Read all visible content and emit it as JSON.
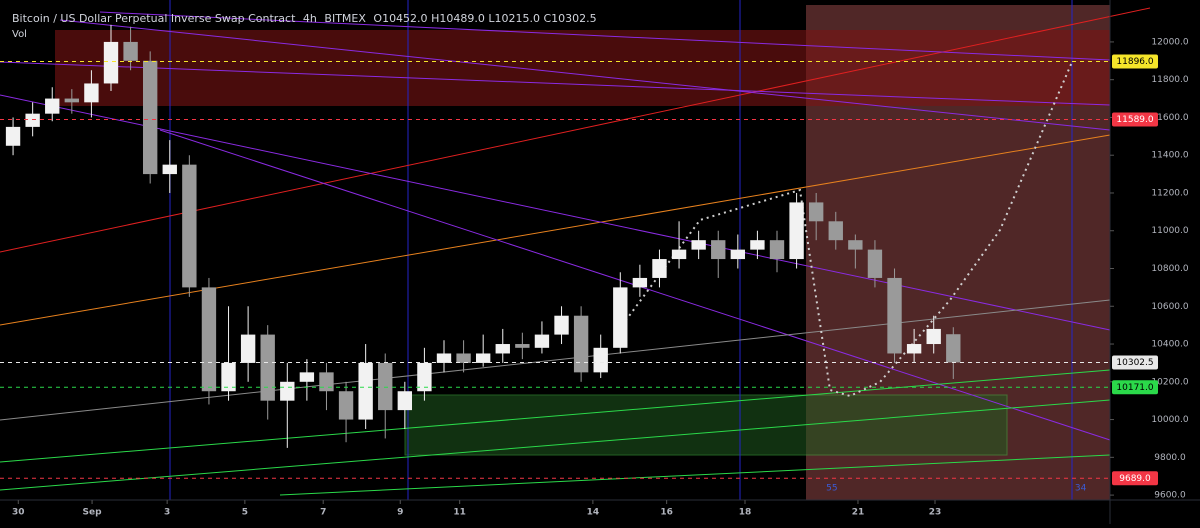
{
  "chart_data": {
    "type": "candlestick",
    "header": [
      "Bitcoin / US Dollar Perpetual Inverse Swap Contract",
      "4h",
      "BITMEX",
      "O10452.0",
      "H10489.0",
      "L10215.0",
      "C10302.5"
    ],
    "volume_label": "Vol",
    "x": [
      2,
      5,
      8,
      11,
      14,
      17,
      20,
      23,
      26,
      29,
      32,
      35,
      38,
      41,
      44,
      47,
      50,
      53,
      56,
      59,
      62,
      65,
      68,
      71,
      74,
      77,
      80,
      83,
      86,
      89,
      92,
      95,
      98,
      101,
      104,
      107,
      110,
      113,
      116,
      119,
      122,
      125,
      128,
      131,
      134,
      137,
      140,
      143,
      146
    ],
    "open": [
      11450,
      11550,
      11620,
      11700,
      11680,
      11780,
      12000,
      11900,
      11300,
      11350,
      10700,
      10150,
      10300,
      10450,
      10100,
      10200,
      10250,
      10150,
      10000,
      10300,
      10050,
      10150,
      10300,
      10350,
      10300,
      10350,
      10400,
      10380,
      10450,
      10550,
      10250,
      10380,
      10700,
      10750,
      10850,
      10900,
      10950,
      10850,
      10900,
      10950,
      10850,
      11150,
      11050,
      10950,
      10900,
      10750,
      10350,
      10400,
      10452
    ],
    "high": [
      11600,
      11680,
      11760,
      11750,
      11850,
      12090,
      12080,
      11950,
      11480,
      11400,
      10750,
      10600,
      10600,
      10500,
      10300,
      10320,
      10300,
      10200,
      10400,
      10350,
      10200,
      10380,
      10420,
      10420,
      10450,
      10480,
      10460,
      10520,
      10600,
      10600,
      10450,
      10780,
      10820,
      10900,
      11050,
      11000,
      11000,
      10980,
      11000,
      11000,
      11200,
      11200,
      11100,
      10980,
      10950,
      10800,
      10480,
      10550,
      10489
    ],
    "low": [
      11400,
      11500,
      11580,
      11620,
      11600,
      11740,
      11850,
      11250,
      11200,
      10650,
      10080,
      10100,
      10200,
      10000,
      9850,
      10100,
      10050,
      9880,
      9950,
      9900,
      9950,
      10100,
      10250,
      10250,
      10280,
      10300,
      10320,
      10350,
      10400,
      10200,
      10220,
      10350,
      10650,
      10700,
      10800,
      10850,
      10750,
      10800,
      10850,
      10780,
      10800,
      10950,
      10900,
      10800,
      10700,
      10300,
      10300,
      10350,
      10215
    ],
    "close": [
      11550,
      11620,
      11700,
      11680,
      11780,
      12000,
      11900,
      11300,
      11350,
      10700,
      10150,
      10300,
      10450,
      10100,
      10200,
      10250,
      10150,
      10000,
      10300,
      10050,
      10150,
      10300,
      10350,
      10300,
      10350,
      10400,
      10380,
      10450,
      10550,
      10250,
      10380,
      10700,
      10750,
      10850,
      10900,
      10950,
      10850,
      10900,
      10950,
      10850,
      11150,
      11050,
      10950,
      10900,
      10750,
      10350,
      10400,
      10480,
      10302.5
    ],
    "up_color": "#f2f2f2",
    "down_color": "#9a9a9a",
    "xlim": [
      0,
      170
    ],
    "xticks": [
      {
        "value": 2.8,
        "label": "30"
      },
      {
        "value": 14.1,
        "label": "Sep"
      },
      {
        "value": 25.6,
        "label": "3"
      },
      {
        "value": 37.5,
        "label": "5"
      },
      {
        "value": 49.5,
        "label": "7"
      },
      {
        "value": 61.3,
        "label": "9"
      },
      {
        "value": 70.4,
        "label": "11"
      },
      {
        "value": 90.8,
        "label": "14"
      },
      {
        "value": 102.1,
        "label": "16"
      },
      {
        "value": 114.1,
        "label": "18"
      },
      {
        "value": 131.4,
        "label": "21"
      },
      {
        "value": 143.2,
        "label": "23"
      }
    ],
    "ylim": [
      9574,
      12222
    ],
    "yticks": [
      {
        "value": 9600,
        "label": "9600.0"
      },
      {
        "value": 9800,
        "label": "9800.0"
      },
      {
        "value": 10000,
        "label": "10000.0"
      },
      {
        "value": 10200,
        "label": "10200.0"
      },
      {
        "value": 10400,
        "label": "10400.0"
      },
      {
        "value": 10600,
        "label": "10600.0"
      },
      {
        "value": 10800,
        "label": "10800.0"
      },
      {
        "value": 11000,
        "label": "11000.0"
      },
      {
        "value": 11200,
        "label": "11200.0"
      },
      {
        "value": 11400,
        "label": "11400.0"
      },
      {
        "value": 11600,
        "label": "11600.0"
      },
      {
        "value": 11800,
        "label": "11800.0"
      },
      {
        "value": 12000,
        "label": "12000.0"
      }
    ],
    "grid": false,
    "price_lines": [
      {
        "value": 11896,
        "label": "11896.0",
        "color": "#f5e52a"
      },
      {
        "value": 11589,
        "label": "11589.0",
        "color": "#f23645"
      },
      {
        "value": 10302.5,
        "label": "10302.5",
        "color": "#e8e8e8"
      },
      {
        "value": 10171,
        "label": "10171.0",
        "color": "#2bd94a"
      },
      {
        "value": 9689,
        "label": "9689.0",
        "color": "#f23645"
      }
    ],
    "annotations": [
      {
        "x": 127.4,
        "text": "55"
      },
      {
        "x": 165.5,
        "text": "34"
      }
    ]
  }
}
